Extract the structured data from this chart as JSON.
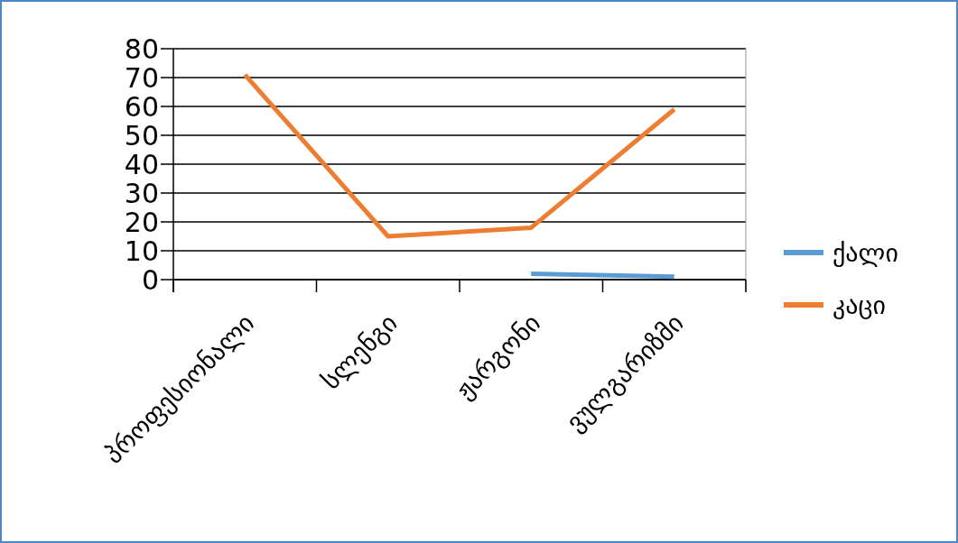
{
  "chart_data": {
    "type": "line",
    "categories": [
      "პროფესიონალი",
      "სლენგი",
      "ჟარგონი",
      "ვულგარიზმი"
    ],
    "series": [
      {
        "name": "ქალი",
        "color": "#5b9bd5",
        "values": [
          null,
          null,
          2,
          1
        ]
      },
      {
        "name": "კაცი",
        "color": "#ed7d31",
        "values": [
          71,
          15,
          18,
          59
        ]
      }
    ],
    "ylim": [
      0,
      80
    ],
    "yticks": [
      0,
      10,
      20,
      30,
      40,
      50,
      60,
      70,
      80
    ],
    "grid": "y",
    "legend": "right",
    "marker": "none",
    "line_style": "solid"
  }
}
